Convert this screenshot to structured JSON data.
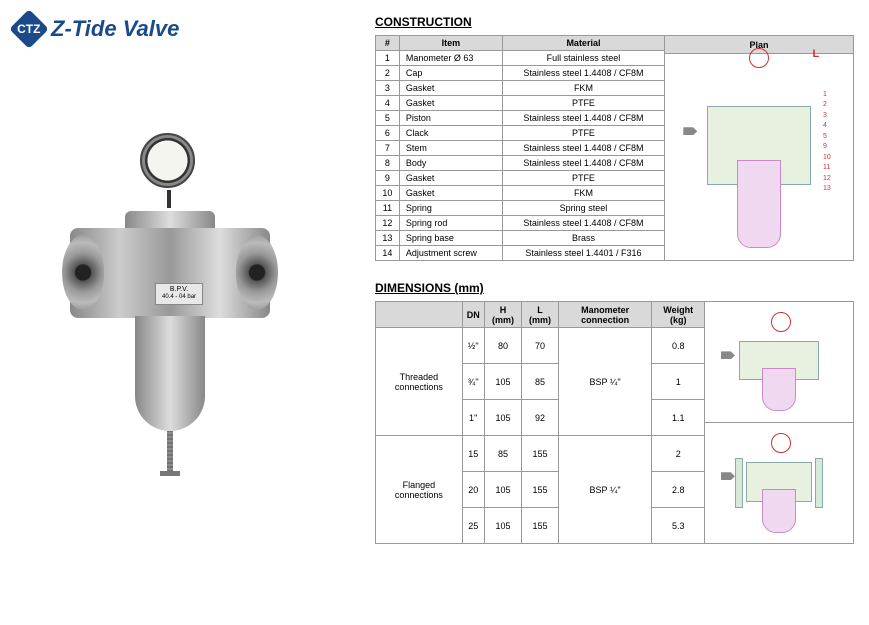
{
  "brand": {
    "logo_initials": "CTZ",
    "name": "Z-Tide Valve"
  },
  "product_label": {
    "line1": "B.P.V.",
    "line2": "40.4 - 04 bar"
  },
  "construction": {
    "title": "CONSTRUCTION",
    "headers": [
      "#",
      "Item",
      "Material",
      "Plan"
    ],
    "rows": [
      [
        "1",
        "Manometer Ø 63",
        "Full stainless steel"
      ],
      [
        "2",
        "Cap",
        "Stainless steel 1.4408 / CF8M"
      ],
      [
        "3",
        "Gasket",
        "FKM"
      ],
      [
        "4",
        "Gasket",
        "PTFE"
      ],
      [
        "5",
        "Piston",
        "Stainless steel 1.4408 / CF8M"
      ],
      [
        "6",
        "Clack",
        "PTFE"
      ],
      [
        "7",
        "Stem",
        "Stainless steel 1.4408 / CF8M"
      ],
      [
        "8",
        "Body",
        "Stainless steel 1.4408 / CF8M"
      ],
      [
        "9",
        "Gasket",
        "PTFE"
      ],
      [
        "10",
        "Gasket",
        "FKM"
      ],
      [
        "11",
        "Spring",
        "Spring steel"
      ],
      [
        "12",
        "Spring rod",
        "Stainless steel 1.4408 / CF8M"
      ],
      [
        "13",
        "Spring base",
        "Brass"
      ],
      [
        "14",
        "Adjustment screw",
        "Stainless steel 1.4401 / F316"
      ]
    ],
    "plan_dim_label": "L"
  },
  "dimensions": {
    "title": "DIMENSIONS (mm)",
    "headers": [
      "",
      "DN",
      "H (mm)",
      "L (mm)",
      "Manometer connection",
      "Weight (kg)"
    ],
    "groups": [
      {
        "label": "Threaded connections",
        "manometer": "BSP ¼''",
        "rows": [
          [
            "½''",
            "80",
            "70",
            "0.8"
          ],
          [
            "¾''",
            "105",
            "85",
            "1"
          ],
          [
            "1''",
            "105",
            "92",
            "1.1"
          ]
        ]
      },
      {
        "label": "Flanged connections",
        "manometer": "BSP ¼''",
        "rows": [
          [
            "15",
            "85",
            "155",
            "2"
          ],
          [
            "20",
            "105",
            "155",
            "2.8"
          ],
          [
            "25",
            "105",
            "155",
            "5.3"
          ]
        ]
      }
    ]
  },
  "colors": {
    "brand_blue": "#1b4a8a",
    "table_header_bg": "#d9d9d9",
    "border": "#999999",
    "diagram_red": "#cc3333"
  }
}
